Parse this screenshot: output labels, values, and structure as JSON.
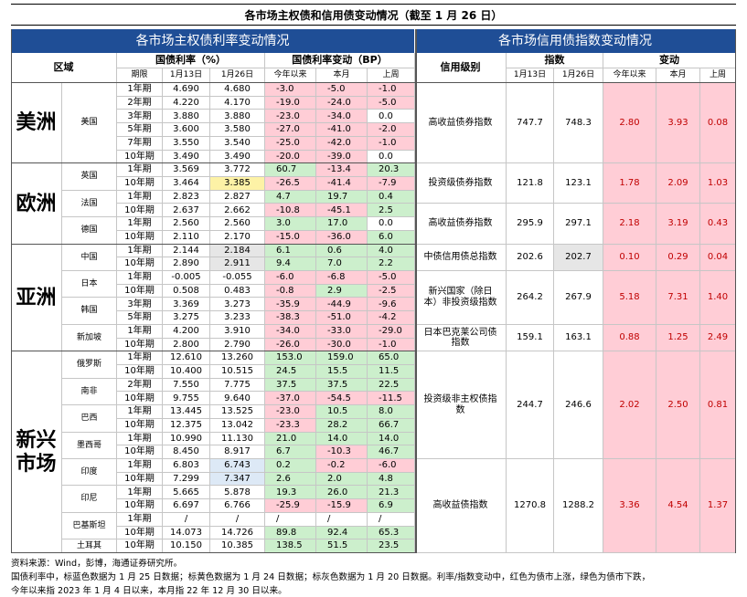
{
  "title": "各市场主权债和信用债变动情况（截至 1 月 26 日）",
  "left": {
    "header": "各市场主权债利率变动情况",
    "col_region": "区域",
    "col_rate": "国债利率（%）",
    "col_change": "国债利率变动（BP）",
    "sub": [
      "期限",
      "1月13日",
      "1月26日",
      "今年以来",
      "本月",
      "上周"
    ],
    "regions": [
      {
        "name": "美洲",
        "countries": [
          {
            "name": "美国",
            "rows": [
              {
                "cells": [
                  "1年期",
                  "4.690",
                  "4.680",
                  "-3.0",
                  "-5.0",
                  "-1.0"
                ]
              },
              {
                "cells": [
                  "2年期",
                  "4.220",
                  "4.170",
                  "-19.0",
                  "-24.0",
                  "-5.0"
                ]
              },
              {
                "cells": [
                  "3年期",
                  "3.880",
                  "3.880",
                  "-23.0",
                  "-34.0",
                  "0.0"
                ]
              },
              {
                "cells": [
                  "5年期",
                  "3.600",
                  "3.580",
                  "-27.0",
                  "-41.0",
                  "-2.0"
                ]
              },
              {
                "cells": [
                  "7年期",
                  "3.550",
                  "3.540",
                  "-25.0",
                  "-42.0",
                  "-1.0"
                ]
              },
              {
                "cells": [
                  "10年期",
                  "3.490",
                  "3.490",
                  "-20.0",
                  "-39.0",
                  "0.0"
                ]
              }
            ]
          }
        ]
      },
      {
        "name": "欧洲",
        "countries": [
          {
            "name": "英国",
            "rows": [
              {
                "cells": [
                  "1年期",
                  "3.569",
                  "3.772",
                  "60.7",
                  "-13.4",
                  "20.3"
                ]
              },
              {
                "cells": [
                  "10年期",
                  "3.464",
                  "3.385",
                  "-26.5",
                  "-41.4",
                  "-7.9"
                ],
                "color": "#fdf2a6"
              }
            ]
          },
          {
            "name": "法国",
            "rows": [
              {
                "cells": [
                  "1年期",
                  "2.823",
                  "2.827",
                  "4.7",
                  "19.7",
                  "0.4"
                ]
              },
              {
                "cells": [
                  "10年期",
                  "2.637",
                  "2.662",
                  "-10.8",
                  "-45.1",
                  "2.5"
                ]
              }
            ]
          },
          {
            "name": "德国",
            "rows": [
              {
                "cells": [
                  "1年期",
                  "2.560",
                  "2.560",
                  "3.0",
                  "17.0",
                  "0.0"
                ]
              },
              {
                "cells": [
                  "10年期",
                  "2.110",
                  "2.170",
                  "-15.0",
                  "-36.0",
                  "6.0"
                ]
              }
            ]
          }
        ]
      },
      {
        "name": "亚洲",
        "countries": [
          {
            "name": "中国",
            "rows": [
              {
                "cells": [
                  "1年期",
                  "2.144",
                  "2.184",
                  "6.1",
                  "0.6",
                  "4.0"
                ],
                "color": "#e6e6e6"
              },
              {
                "cells": [
                  "10年期",
                  "2.890",
                  "2.911",
                  "9.4",
                  "7.0",
                  "2.2"
                ],
                "color": "#e6e6e6"
              }
            ]
          },
          {
            "name": "日本",
            "rows": [
              {
                "cells": [
                  "1年期",
                  "-0.005",
                  "-0.055",
                  "-6.0",
                  "-6.8",
                  "-5.0"
                ]
              },
              {
                "cells": [
                  "10年期",
                  "0.508",
                  "0.483",
                  "-0.8",
                  "2.9",
                  "-2.5"
                ]
              }
            ]
          },
          {
            "name": "韩国",
            "rows": [
              {
                "cells": [
                  "3年期",
                  "3.369",
                  "3.273",
                  "-35.9",
                  "-44.9",
                  "-9.6"
                ]
              },
              {
                "cells": [
                  "5年期",
                  "3.275",
                  "3.233",
                  "-38.3",
                  "-51.0",
                  "-4.2"
                ]
              }
            ]
          },
          {
            "name": "新加坡",
            "rows": [
              {
                "cells": [
                  "1年期",
                  "4.200",
                  "3.910",
                  "-34.0",
                  "-33.0",
                  "-29.0"
                ]
              },
              {
                "cells": [
                  "10年期",
                  "2.800",
                  "2.790",
                  "-26.0",
                  "-30.0",
                  "-1.0"
                ]
              }
            ]
          }
        ]
      },
      {
        "name": "新兴市场",
        "countries": [
          {
            "name": "俄罗斯",
            "rows": [
              {
                "cells": [
                  "1年期",
                  "12.610",
                  "13.260",
                  "153.0",
                  "159.0",
                  "65.0"
                ]
              },
              {
                "cells": [
                  "10年期",
                  "10.400",
                  "10.515",
                  "24.5",
                  "15.5",
                  "11.5"
                ]
              }
            ]
          },
          {
            "name": "南非",
            "rows": [
              {
                "cells": [
                  "2年期",
                  "7.550",
                  "7.775",
                  "37.5",
                  "37.5",
                  "22.5"
                ]
              },
              {
                "cells": [
                  "10年期",
                  "9.755",
                  "9.640",
                  "-37.0",
                  "-54.5",
                  "-11.5"
                ]
              }
            ]
          },
          {
            "name": "巴西",
            "rows": [
              {
                "cells": [
                  "1年期",
                  "13.445",
                  "13.525",
                  "-23.0",
                  "10.5",
                  "8.0"
                ]
              },
              {
                "cells": [
                  "10年期",
                  "12.375",
                  "13.042",
                  "-23.3",
                  "28.2",
                  "66.7"
                ]
              }
            ]
          },
          {
            "name": "墨西哥",
            "rows": [
              {
                "cells": [
                  "1年期",
                  "10.990",
                  "11.130",
                  "21.0",
                  "14.0",
                  "14.0"
                ]
              },
              {
                "cells": [
                  "10年期",
                  "8.450",
                  "8.917",
                  "6.7",
                  "-10.3",
                  "46.7"
                ]
              }
            ]
          },
          {
            "name": "印度",
            "rows": [
              {
                "cells": [
                  "1年期",
                  "6.803",
                  "6.743",
                  "0.2",
                  "-0.2",
                  "-6.0"
                ],
                "color": "#dde9f6"
              },
              {
                "cells": [
                  "10年期",
                  "7.299",
                  "7.347",
                  "2.6",
                  "2.0",
                  "4.8"
                ],
                "color": "#dde9f6"
              }
            ]
          },
          {
            "name": "印尼",
            "rows": [
              {
                "cells": [
                  "1年期",
                  "5.665",
                  "5.878",
                  "19.3",
                  "26.0",
                  "21.3"
                ]
              },
              {
                "cells": [
                  "10年期",
                  "6.697",
                  "6.766",
                  "-25.9",
                  "-15.9",
                  "6.9"
                ]
              }
            ]
          },
          {
            "name": "巴基斯坦",
            "rows": [
              {
                "cells": [
                  "1年期",
                  "/",
                  "/",
                  "/",
                  "/",
                  "/"
                ]
              },
              {
                "cells": [
                  "10年期",
                  "14.073",
                  "14.726",
                  "89.8",
                  "92.4",
                  "65.3"
                ]
              }
            ]
          },
          {
            "name": "土耳其",
            "rows": [
              {
                "cells": [
                  "10年期",
                  "10.150",
                  "10.385",
                  "138.5",
                  "51.5",
                  "23.5"
                ]
              }
            ]
          }
        ]
      }
    ]
  },
  "right": {
    "header": "各市场信用债指数变动情况",
    "col_grade": "信用级别",
    "col_index": "指数",
    "col_change": "变动",
    "sub": [
      "1月13日",
      "1月26日",
      "今年以来",
      "本月",
      "上周"
    ],
    "groups": [
      {
        "rows": [
          {
            "name": "高收益债券指数",
            "cells": [
              "747.7",
              "748.3",
              "2.80",
              "3.93",
              "0.08"
            ]
          }
        ]
      },
      {
        "rows": [
          {
            "name": "投资级债券指数",
            "cells": [
              "121.8",
              "123.1",
              "1.78",
              "2.09",
              "1.03"
            ]
          },
          {
            "name": "高收益债券指数",
            "cells": [
              "295.9",
              "297.1",
              "2.18",
              "3.19",
              "0.43"
            ]
          }
        ]
      },
      {
        "rows": [
          {
            "name": "中债信用债总指数",
            "cells": [
              "202.6",
              "202.7",
              "0.10",
              "0.29",
              "0.04"
            ],
            "color": "#e6e6e6"
          },
          {
            "name": "新兴国家（除日本）非投资级指数",
            "cells": [
              "264.2",
              "267.9",
              "5.18",
              "7.31",
              "1.40"
            ]
          },
          {
            "name": "日本巴克莱公司债指数",
            "cells": [
              "159.1",
              "163.1",
              "0.88",
              "1.25",
              "2.49"
            ]
          }
        ]
      },
      {
        "rows": [
          {
            "name": "投资级非主权债指数",
            "cells": [
              "244.7",
              "246.6",
              "2.02",
              "2.50",
              "0.81"
            ]
          },
          {
            "name": "高收益债指数",
            "cells": [
              "1270.8",
              "1288.2",
              "3.36",
              "4.54",
              "1.37"
            ]
          }
        ]
      }
    ]
  },
  "notes": [
    "资料来源：Wind，彭博，海通证券研究所。",
    "国债利率中，标蓝色数据为 1 月 25 日数据；标黄色数据为 1 月 24 日数据；标灰色数据为 1 月 20 日数据。利率/指数变动中，红色为债市上涨，绿色为债市下跌，",
    "今年以来指 2023 年 1 月 4 日以来，本月指 22 年 12 月 30 日以来。"
  ]
}
